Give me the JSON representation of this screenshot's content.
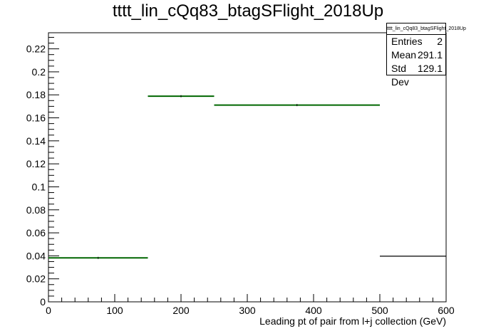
{
  "chart_data": {
    "type": "histogram",
    "title": "tttt_lin_cQq83_btagSFlight_2018Up",
    "xlabel": "Leading pt of pair from l+j collection (GeV)",
    "ylabel": "",
    "xlim": [
      0,
      600
    ],
    "ylim": [
      0,
      0.234
    ],
    "x_ticks": [
      0,
      100,
      200,
      300,
      400,
      500,
      600
    ],
    "y_ticks": [
      0,
      0.02,
      0.04,
      0.06,
      0.08,
      0.1,
      0.12,
      0.14,
      0.16,
      0.18,
      0.2,
      0.22
    ],
    "bins": [
      {
        "low": 0,
        "high": 150,
        "value": 0.0382
      },
      {
        "low": 150,
        "high": 250,
        "value": 0.1788
      },
      {
        "low": 250,
        "high": 500,
        "value": 0.1711
      },
      {
        "low": 500,
        "high": 600,
        "value": 0.0397
      }
    ],
    "series": [
      {
        "name": "",
        "color": "#006600",
        "points": [
          {
            "x": 75,
            "y": 0.0382
          },
          {
            "x": 200,
            "y": 0.1788
          },
          {
            "x": 375,
            "y": 0.1711
          }
        ]
      }
    ],
    "stats": {
      "name": "tttt_lin_cQq83_btagSFlight_2018Up",
      "rows": [
        {
          "label": "Entries",
          "value": "2"
        },
        {
          "label": "Mean",
          "value": "291.1"
        },
        {
          "label": "Std Dev",
          "value": "129.1"
        }
      ]
    },
    "grid": false,
    "legend": "top-right"
  }
}
